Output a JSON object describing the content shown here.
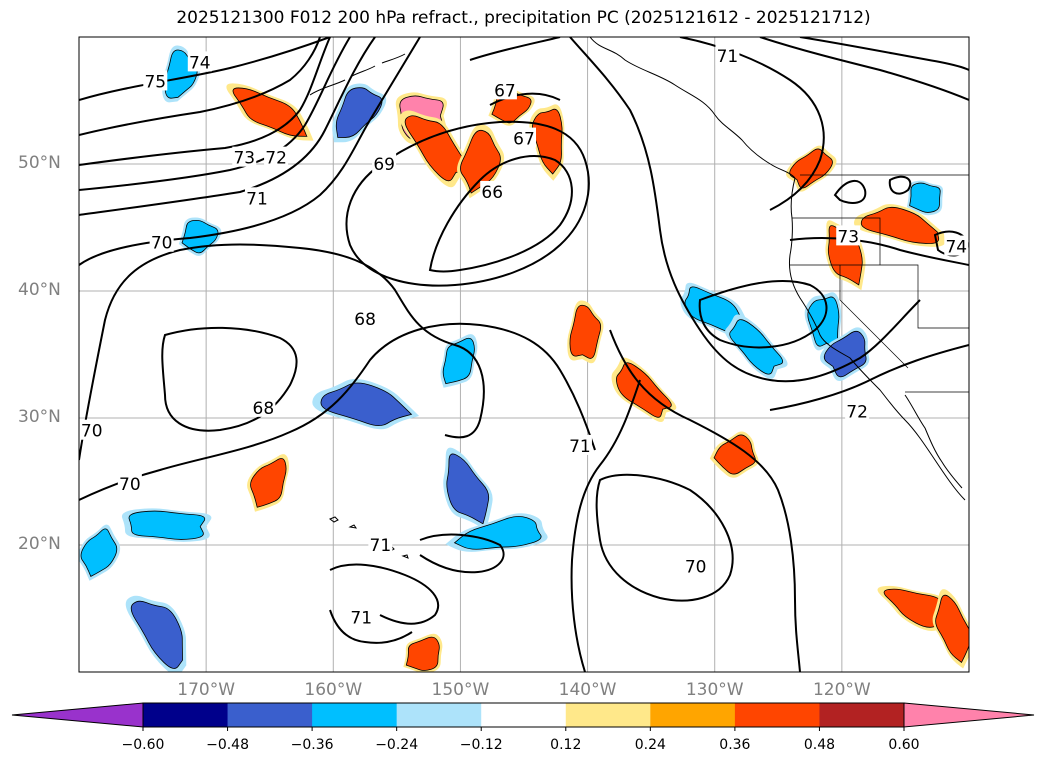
{
  "chart_data": {
    "type": "heatmap",
    "title": "2025121300 F012 200 hPa refract., precipitation PC (2025121612 - 2025121712)",
    "xlabel": "",
    "ylabel": "",
    "x_range": [
      -180,
      -110
    ],
    "y_range": [
      10,
      60
    ],
    "lat_ticks": [
      {
        "value": 50,
        "label": "50°N"
      },
      {
        "value": 40,
        "label": "40°N"
      },
      {
        "value": 30,
        "label": "30°N"
      },
      {
        "value": 20,
        "label": "20°N"
      }
    ],
    "lon_ticks": [
      {
        "value": -170,
        "label": "170°W"
      },
      {
        "value": -160,
        "label": "160°W"
      },
      {
        "value": -150,
        "label": "150°W"
      },
      {
        "value": -140,
        "label": "140°W"
      },
      {
        "value": -130,
        "label": "130°W"
      },
      {
        "value": -120,
        "label": "120°W"
      }
    ],
    "contour_field": "200 hPa refractivity",
    "contour_labels": [
      {
        "text": "75",
        "lon": -174,
        "lat": 56.5
      },
      {
        "text": "74",
        "lon": -170.5,
        "lat": 58
      },
      {
        "text": "73",
        "lon": -167,
        "lat": 50.5
      },
      {
        "text": "72",
        "lon": -164.5,
        "lat": 50.5
      },
      {
        "text": "71",
        "lon": -166,
        "lat": 47.3
      },
      {
        "text": "70",
        "lon": -173.5,
        "lat": 43.8
      },
      {
        "text": "69",
        "lon": -156,
        "lat": 50
      },
      {
        "text": "67",
        "lon": -146.5,
        "lat": 55.8
      },
      {
        "text": "67",
        "lon": -145,
        "lat": 52
      },
      {
        "text": "66",
        "lon": -147.5,
        "lat": 47.8
      },
      {
        "text": "68",
        "lon": -157.5,
        "lat": 37.8
      },
      {
        "text": "68",
        "lon": -165.5,
        "lat": 30.8
      },
      {
        "text": "70",
        "lon": -179,
        "lat": 29
      },
      {
        "text": "70",
        "lon": -176,
        "lat": 24.8
      },
      {
        "text": "71",
        "lon": -156.3,
        "lat": 20
      },
      {
        "text": "71",
        "lon": -157.8,
        "lat": 14.3
      },
      {
        "text": "71",
        "lon": -140.6,
        "lat": 27.8
      },
      {
        "text": "70",
        "lon": -131.5,
        "lat": 18.3
      },
      {
        "text": "71",
        "lon": -129,
        "lat": 58.5
      },
      {
        "text": "72",
        "lon": -118.8,
        "lat": 30.5
      },
      {
        "text": "73",
        "lon": -119.5,
        "lat": 44.3
      },
      {
        "text": "74",
        "lon": -111,
        "lat": 43.5
      }
    ],
    "fill_field": "precipitation PC",
    "fill_regions": [
      {
        "lon": -153,
        "lat": 53.8,
        "value": 0.6
      },
      {
        "lon": -152,
        "lat": 51.5,
        "value": 0.45
      },
      {
        "lon": -148.5,
        "lat": 50,
        "value": 0.45
      },
      {
        "lon": -146,
        "lat": 54.5,
        "value": 0.36
      },
      {
        "lon": -165,
        "lat": 54,
        "value": 0.36
      },
      {
        "lon": -143,
        "lat": 52.2,
        "value": 0.36
      },
      {
        "lon": -122.5,
        "lat": 49.7,
        "value": 0.36
      },
      {
        "lon": -115.3,
        "lat": 45.2,
        "value": 0.36
      },
      {
        "lon": -119.8,
        "lat": 42.8,
        "value": 0.36
      },
      {
        "lon": -165,
        "lat": 24.9,
        "value": 0.36
      },
      {
        "lon": -128.2,
        "lat": 27.2,
        "value": 0.45
      },
      {
        "lon": -135.6,
        "lat": 32.1,
        "value": 0.36
      },
      {
        "lon": -140.2,
        "lat": 36.8,
        "value": 0.36
      },
      {
        "lon": -153,
        "lat": 11.3,
        "value": 0.36
      },
      {
        "lon": -113.8,
        "lat": 15.1,
        "value": 0.36
      },
      {
        "lon": -111.3,
        "lat": 13.4,
        "value": 0.36
      },
      {
        "lon": -158,
        "lat": 54.2,
        "value": -0.48
      },
      {
        "lon": -173,
        "lat": 21.5,
        "value": -0.36
      },
      {
        "lon": -173.5,
        "lat": 13.2,
        "value": -0.48
      },
      {
        "lon": -178.5,
        "lat": 19.4,
        "value": -0.36
      },
      {
        "lon": -170.5,
        "lat": 44.3,
        "value": -0.36
      },
      {
        "lon": -130.3,
        "lat": 38.5,
        "value": -0.36
      },
      {
        "lon": -121.3,
        "lat": 37.5,
        "value": -0.36
      },
      {
        "lon": -119.5,
        "lat": 35.1,
        "value": -0.48
      },
      {
        "lon": -157.2,
        "lat": 31,
        "value": -0.48
      },
      {
        "lon": -149.5,
        "lat": 24.4,
        "value": -0.48
      },
      {
        "lon": -150.2,
        "lat": 34.5,
        "value": -0.36
      },
      {
        "lon": -146.5,
        "lat": 20.8,
        "value": -0.36
      },
      {
        "lon": -126.8,
        "lat": 35.5,
        "value": -0.36
      },
      {
        "lon": -172,
        "lat": 57,
        "value": -0.36
      },
      {
        "lon": -113.5,
        "lat": 47.4,
        "value": -0.36
      }
    ],
    "colorbar": {
      "extend": "both",
      "levels": [
        -0.72,
        -0.6,
        -0.48,
        -0.36,
        -0.24,
        -0.12,
        0.12,
        0.24,
        0.36,
        0.48,
        0.6,
        0.72
      ],
      "colors": [
        "#9932CC",
        "#00008B",
        "#3A5FCD",
        "#00BFFF",
        "#ADE3FA",
        "#FFFFFF",
        "#FFE88A",
        "#FFA500",
        "#FF4500",
        "#B22222",
        "#FF82AB"
      ],
      "tick_labels": [
        "−0.60",
        "−0.48",
        "−0.36",
        "−0.24",
        "−0.12",
        "0.12",
        "0.24",
        "0.36",
        "0.48",
        "0.60"
      ]
    }
  }
}
